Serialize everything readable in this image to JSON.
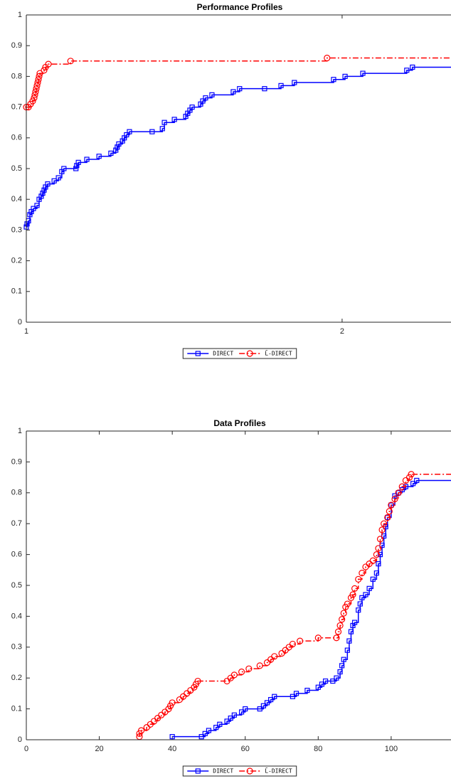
{
  "chart_data": [
    {
      "type": "line",
      "title": "Performance Profiles",
      "xscale": "log",
      "step": true,
      "xlim": [
        1,
        2.54
      ],
      "xticks": [
        1,
        2
      ],
      "ylim": [
        0,
        1
      ],
      "yticks": [
        0,
        0.1,
        0.2,
        0.3,
        0.4,
        0.5,
        0.6,
        0.7,
        0.8,
        0.9,
        1
      ],
      "grid": false,
      "legend": "bottom-outside",
      "series": [
        {
          "name": "DIRECT",
          "color": "#0000ff",
          "marker": "square",
          "dash": "solid",
          "x": [
            1,
            1.0016,
            1.0047,
            1.0078,
            1.011,
            1.0157,
            1.0237,
            1.0285,
            1.0333,
            1.0366,
            1.0398,
            1.043,
            1.048,
            1.063,
            1.073,
            1.081,
            1.086,
            1.115,
            1.117,
            1.121,
            1.142,
            1.173,
            1.204,
            1.217,
            1.221,
            1.225,
            1.235,
            1.24,
            1.246,
            1.254,
            1.318,
            1.348,
            1.354,
            1.384,
            1.419,
            1.425,
            1.432,
            1.439,
            1.466,
            1.473,
            1.482,
            1.503,
            1.575,
            1.597,
            1.687,
            1.749,
            1.801,
            1.963,
            2.013,
            2.093,
            2.305,
            2.334
          ],
          "values": [
            0.31,
            0.32,
            0.33,
            0.35,
            0.36,
            0.37,
            0.38,
            0.4,
            0.41,
            0.42,
            0.43,
            0.44,
            0.45,
            0.46,
            0.47,
            0.49,
            0.5,
            0.5,
            0.51,
            0.52,
            0.53,
            0.54,
            0.55,
            0.56,
            0.57,
            0.58,
            0.59,
            0.6,
            0.61,
            0.62,
            0.62,
            0.63,
            0.65,
            0.66,
            0.67,
            0.68,
            0.69,
            0.7,
            0.71,
            0.72,
            0.73,
            0.74,
            0.75,
            0.76,
            0.76,
            0.77,
            0.78,
            0.79,
            0.8,
            0.81,
            0.82,
            0.83
          ]
        },
        {
          "name": "L̄-DIRECT",
          "color": "#ff0000",
          "marker": "circle",
          "dash": "dashdot",
          "x": [
            1,
            1.0047,
            1.0094,
            1.0141,
            1.0173,
            1.0189,
            1.0205,
            1.0221,
            1.0237,
            1.0253,
            1.0269,
            1.0285,
            1.0301,
            1.0398,
            1.043,
            1.0496,
            1.102,
            1.935
          ],
          "values": [
            0.7,
            0.7,
            0.71,
            0.72,
            0.73,
            0.74,
            0.75,
            0.76,
            0.77,
            0.78,
            0.79,
            0.8,
            0.81,
            0.82,
            0.83,
            0.84,
            0.85,
            0.86
          ]
        }
      ]
    },
    {
      "type": "line",
      "title": "Data Profiles",
      "xscale": "linear",
      "step": true,
      "xlim": [
        0,
        116.4
      ],
      "xticks": [
        0,
        20,
        40,
        60,
        80,
        100
      ],
      "ylim": [
        0,
        1
      ],
      "yticks": [
        0,
        0.1,
        0.2,
        0.3,
        0.4,
        0.5,
        0.6,
        0.7,
        0.8,
        0.9,
        1
      ],
      "grid": false,
      "legend": "bottom-outside",
      "series": [
        {
          "name": "DIRECT",
          "color": "#0000ff",
          "marker": "square",
          "dash": "solid",
          "x": [
            40,
            48,
            49,
            50,
            52,
            53,
            55,
            56,
            57,
            59,
            60,
            64,
            65,
            66,
            67,
            68,
            73,
            74,
            77,
            80,
            81,
            82,
            84,
            85,
            86,
            86.5,
            87,
            88,
            88.5,
            89,
            89.5,
            90,
            91,
            91.5,
            92,
            93,
            94,
            95,
            96,
            96.5,
            97,
            97.5,
            98,
            98.5,
            99,
            100,
            101,
            102,
            103,
            104,
            106,
            107
          ],
          "values": [
            0.01,
            0.01,
            0.02,
            0.03,
            0.04,
            0.05,
            0.06,
            0.07,
            0.08,
            0.09,
            0.1,
            0.1,
            0.11,
            0.12,
            0.13,
            0.14,
            0.14,
            0.15,
            0.16,
            0.17,
            0.18,
            0.19,
            0.19,
            0.2,
            0.22,
            0.24,
            0.26,
            0.29,
            0.32,
            0.35,
            0.37,
            0.38,
            0.42,
            0.44,
            0.46,
            0.47,
            0.49,
            0.52,
            0.54,
            0.57,
            0.6,
            0.63,
            0.66,
            0.69,
            0.72,
            0.76,
            0.79,
            0.8,
            0.81,
            0.82,
            0.83,
            0.84
          ]
        },
        {
          "name": "L̄-DIRECT",
          "color": "#ff0000",
          "marker": "circle",
          "dash": "dashdot",
          "x": [
            31,
            31,
            31.5,
            33,
            34,
            35,
            36,
            37,
            38,
            39,
            39.5,
            40,
            42,
            43,
            44,
            45,
            46,
            46.5,
            47,
            55,
            56,
            57,
            59,
            61,
            64,
            66,
            67,
            68,
            70,
            71,
            72,
            73,
            75,
            80,
            85,
            85.5,
            86,
            86.5,
            87,
            87.5,
            88,
            89,
            89.5,
            90,
            91,
            92,
            93,
            94,
            95,
            96,
            96.5,
            97,
            97.5,
            98,
            99,
            99.5,
            100,
            101,
            102,
            103,
            104,
            105,
            105.5
          ],
          "values": [
            0.01,
            0.02,
            0.03,
            0.04,
            0.05,
            0.06,
            0.07,
            0.08,
            0.09,
            0.1,
            0.11,
            0.12,
            0.13,
            0.14,
            0.15,
            0.16,
            0.17,
            0.18,
            0.19,
            0.19,
            0.2,
            0.21,
            0.22,
            0.23,
            0.24,
            0.25,
            0.26,
            0.27,
            0.28,
            0.29,
            0.3,
            0.31,
            0.32,
            0.33,
            0.33,
            0.35,
            0.37,
            0.39,
            0.41,
            0.43,
            0.44,
            0.46,
            0.47,
            0.49,
            0.52,
            0.54,
            0.56,
            0.57,
            0.58,
            0.6,
            0.62,
            0.65,
            0.68,
            0.7,
            0.72,
            0.74,
            0.76,
            0.78,
            0.8,
            0.82,
            0.84,
            0.85,
            0.86
          ]
        }
      ]
    }
  ]
}
